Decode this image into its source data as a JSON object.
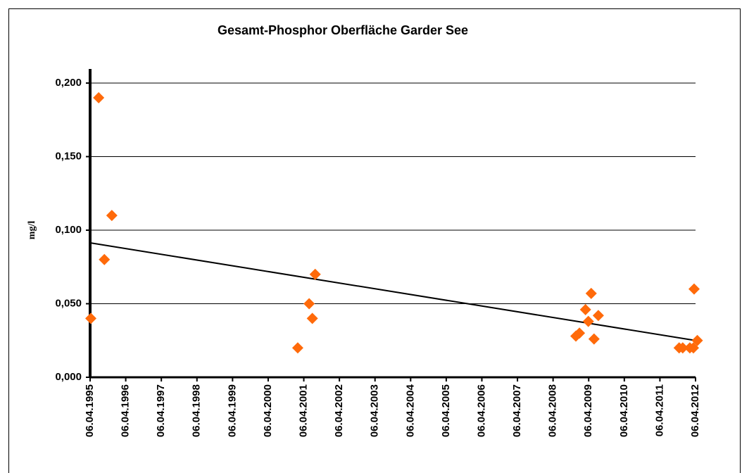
{
  "chart_data": {
    "type": "scatter",
    "title": "Gesamt-Phosphor Oberfläche  Garder See",
    "y_label": "mg/l",
    "series": [
      {
        "name": "Gesamt-Phosphor",
        "color": "#ff6a0a",
        "x": [
          1995.28,
          1995.5,
          1995.66,
          1995.87,
          2001.09,
          2001.41,
          2001.5,
          2001.58,
          2008.9,
          2009.0,
          2009.17,
          2009.25,
          2009.33,
          2009.41,
          2009.53,
          2011.8,
          2011.9,
          2012.1,
          2012.2,
          2012.22,
          2012.31
        ],
        "values": [
          0.04,
          0.19,
          0.08,
          0.11,
          0.02,
          0.05,
          0.04,
          0.07,
          0.028,
          0.03,
          0.046,
          0.038,
          0.057,
          0.026,
          0.042,
          0.02,
          0.02,
          0.02,
          0.02,
          0.06,
          0.025
        ]
      }
    ],
    "trendline": {
      "color": "#000000",
      "x": [
        1995.26,
        2012.26
      ],
      "values": [
        0.0914,
        0.025
      ]
    },
    "xlim": [
      1995.26,
      2012.26
    ],
    "xticks": [
      {
        "value": 1995.26,
        "label": "06.04.1995"
      },
      {
        "value": 1996.26,
        "label": "06.04.1996"
      },
      {
        "value": 1997.26,
        "label": "06.04.1997"
      },
      {
        "value": 1998.26,
        "label": "06.04.1998"
      },
      {
        "value": 1999.26,
        "label": "06.04.1999"
      },
      {
        "value": 2000.26,
        "label": "06.04.2000"
      },
      {
        "value": 2001.26,
        "label": "06.04.2001"
      },
      {
        "value": 2002.26,
        "label": "06.04.2002"
      },
      {
        "value": 2003.26,
        "label": "06.04.2003"
      },
      {
        "value": 2004.26,
        "label": "06.04.2004"
      },
      {
        "value": 2005.26,
        "label": "06.04.2005"
      },
      {
        "value": 2006.26,
        "label": "06.04.2006"
      },
      {
        "value": 2007.26,
        "label": "06.04.2007"
      },
      {
        "value": 2008.26,
        "label": "06.04.2008"
      },
      {
        "value": 2009.26,
        "label": "06.04.2009"
      },
      {
        "value": 2010.26,
        "label": "06.04.2010"
      },
      {
        "value": 2011.26,
        "label": "06.04.2011"
      },
      {
        "value": 2012.26,
        "label": "06.04.2012"
      }
    ],
    "ylim": [
      0,
      0.2
    ],
    "yticks": [
      {
        "value": 0,
        "label": "0,000"
      },
      {
        "value": 0.05,
        "label": "0,050"
      },
      {
        "value": 0.1,
        "label": "0,100"
      },
      {
        "value": 0.15,
        "label": "0,150"
      },
      {
        "value": 0.2,
        "label": "0,200"
      }
    ],
    "grid": true
  }
}
